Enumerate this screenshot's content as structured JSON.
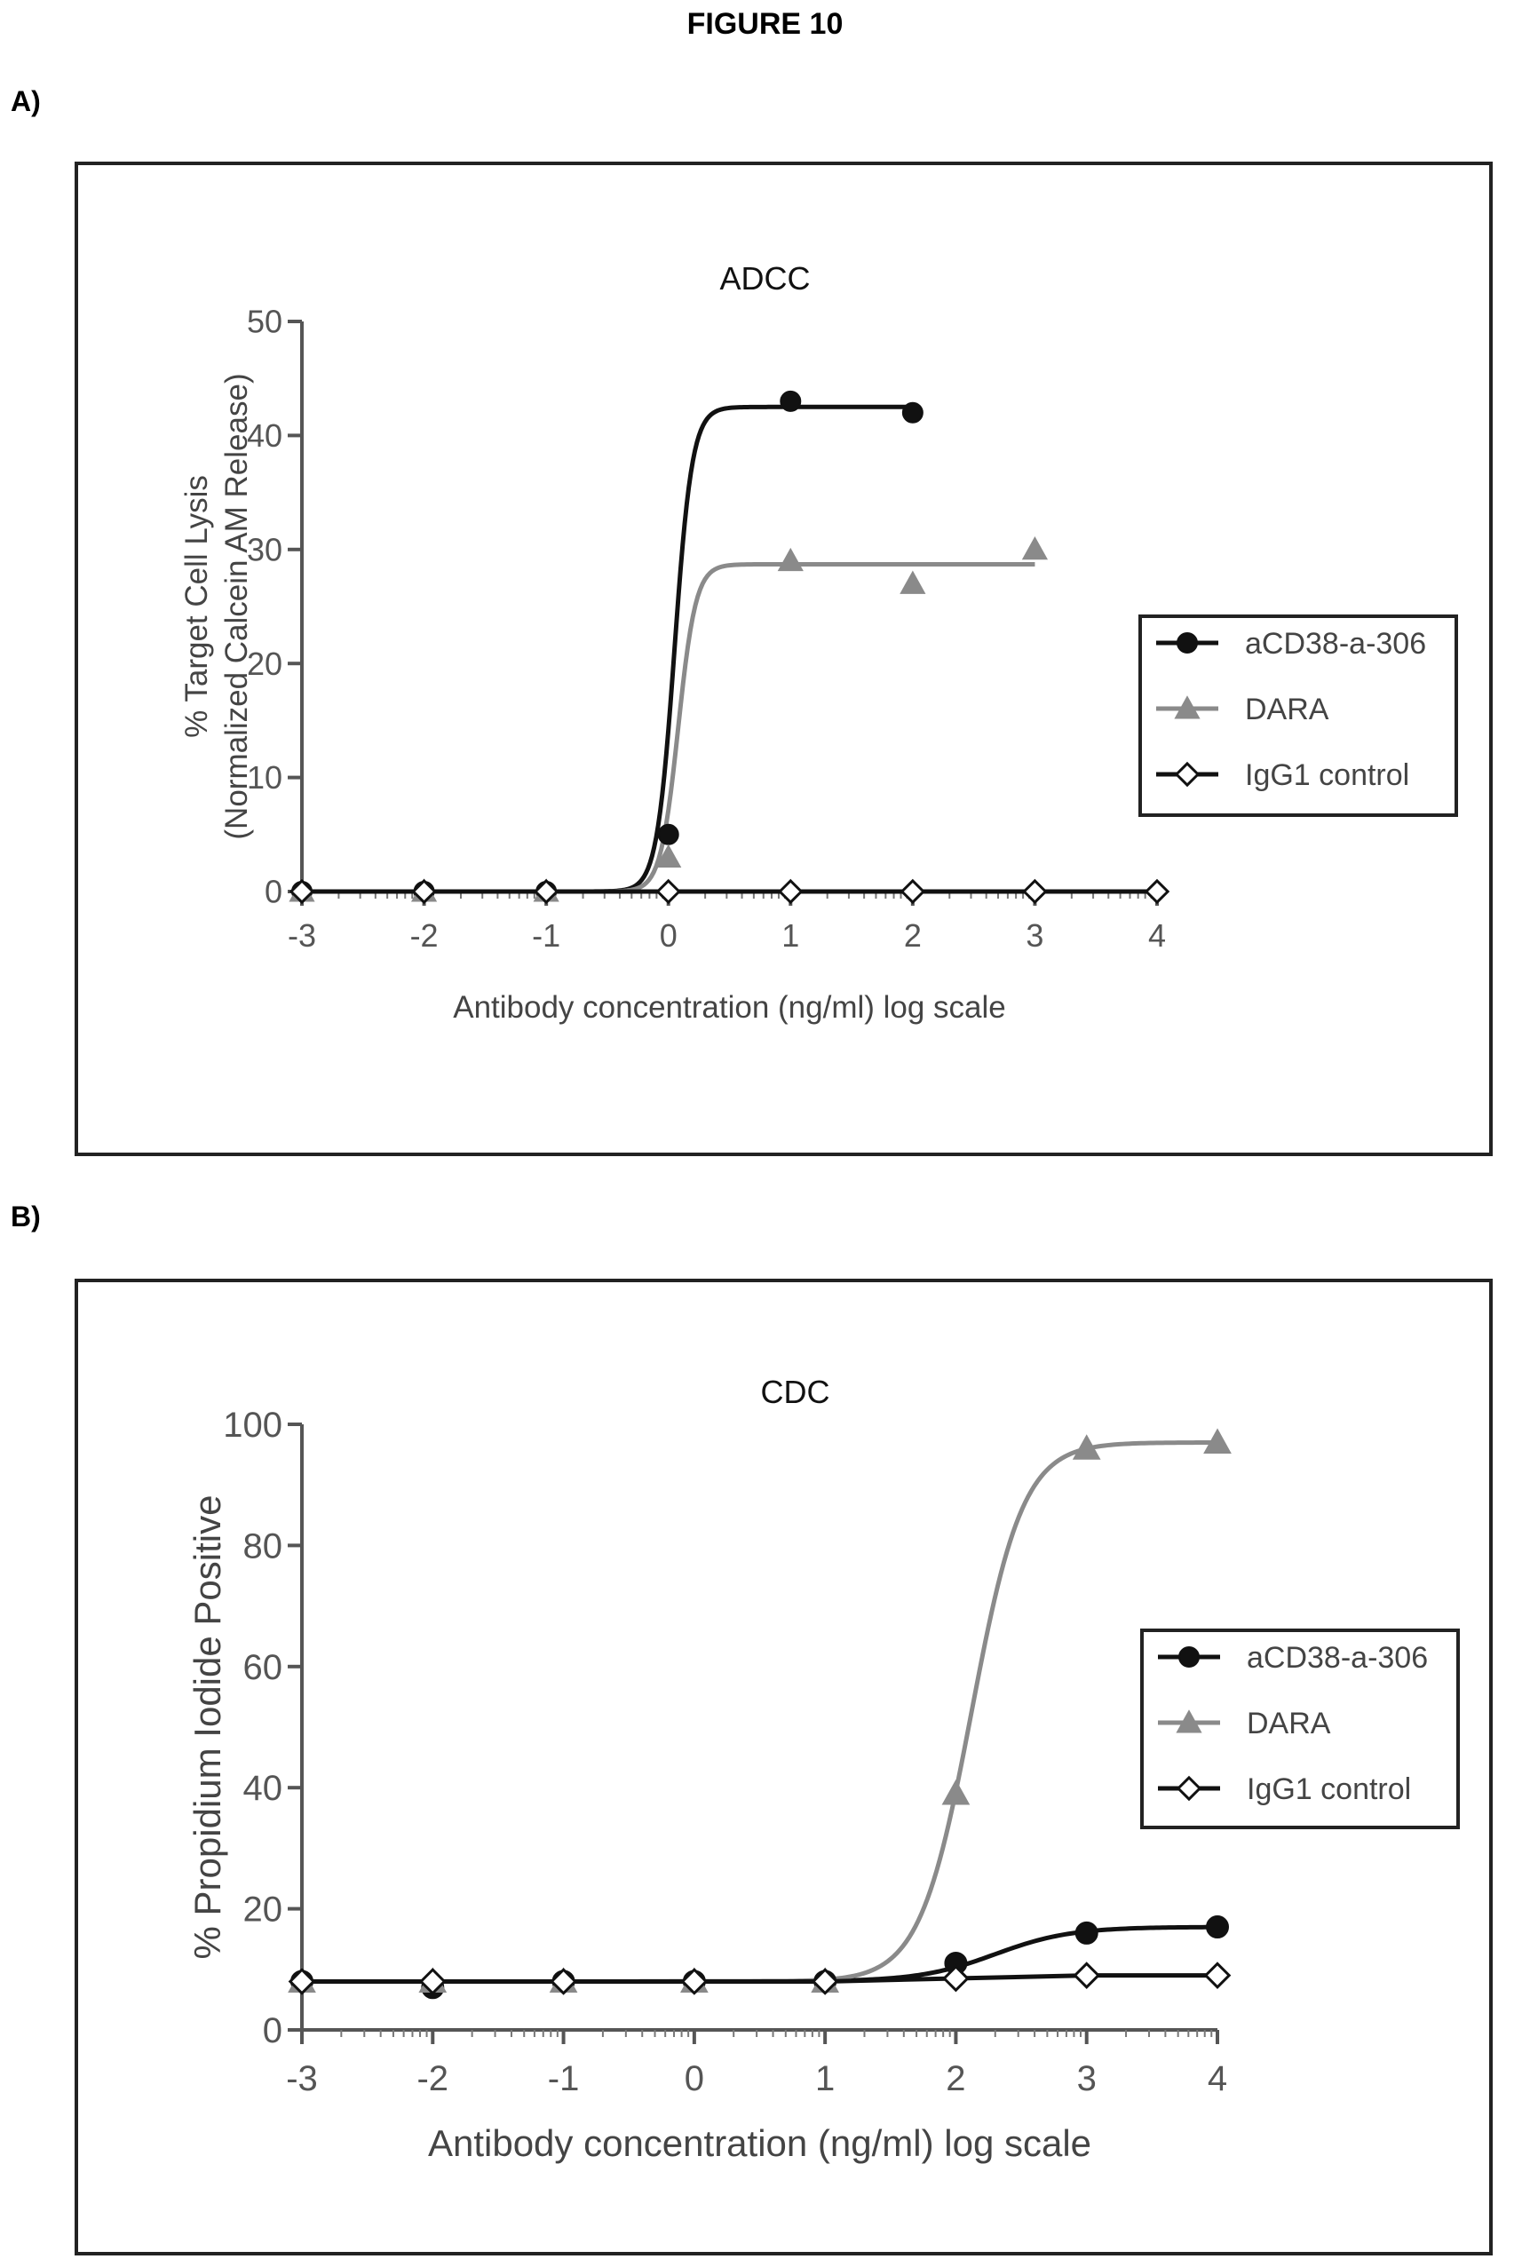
{
  "figure_title": "FIGURE 10",
  "panels": [
    {
      "label": "A)"
    },
    {
      "label": "B)"
    }
  ],
  "chart_data": [
    {
      "type": "line",
      "title": "ADCC",
      "xlabel": "Antibody concentration (ng/ml) log scale",
      "ylabel_lines": [
        "% Target Cell Lysis",
        "(Normalized Calcein AM Release)"
      ],
      "xlim": [
        -3,
        4
      ],
      "ylim": [
        0,
        50
      ],
      "x_ticks": [
        -3,
        -2,
        -1,
        0,
        1,
        2,
        3,
        4
      ],
      "y_ticks": [
        0,
        10,
        20,
        30,
        40,
        50
      ],
      "legend_position": "right",
      "series": [
        {
          "name": "aCD38-a-306",
          "color": "#111111",
          "marker": "circle",
          "fit": {
            "bottom": 0,
            "top": 42.5,
            "ec50": 0.05,
            "hill": 6
          },
          "x": [
            -3,
            -2,
            -1,
            0,
            1,
            2
          ],
          "y": [
            0,
            0,
            0,
            5,
            43,
            42
          ]
        },
        {
          "name": "DARA",
          "color": "#8a8a8a",
          "marker": "triangle",
          "fit": {
            "bottom": 0,
            "top": 28.7,
            "ec50": 0.08,
            "hill": 6
          },
          "x": [
            -3,
            -2,
            -1,
            0,
            1,
            2,
            3
          ],
          "y": [
            0,
            0,
            0,
            3,
            29,
            27,
            30
          ]
        },
        {
          "name": "IgG1 control",
          "color": "#111111",
          "marker": "diamond-open",
          "x": [
            -3,
            -2,
            -1,
            0,
            1,
            2,
            3,
            4
          ],
          "y": [
            0,
            0,
            0,
            0,
            0,
            0,
            0,
            0
          ]
        }
      ]
    },
    {
      "type": "line",
      "title": "CDC",
      "xlabel": "Antibody concentration (ng/ml) log scale",
      "ylabel_lines": [
        "% Propidium Iodide Positive"
      ],
      "xlim": [
        -3,
        4
      ],
      "ylim": [
        0,
        100
      ],
      "x_ticks": [
        -3,
        -2,
        -1,
        0,
        1,
        2,
        3,
        4
      ],
      "y_ticks": [
        0,
        20,
        40,
        60,
        80,
        100
      ],
      "legend_position": "right",
      "series": [
        {
          "name": "aCD38-a-306",
          "color": "#111111",
          "marker": "circle",
          "fit": {
            "bottom": 8,
            "top": 17,
            "ec50": 2.3,
            "hill": 1.5
          },
          "x": [
            -3,
            -2,
            -1,
            0,
            1,
            2,
            3,
            4
          ],
          "y": [
            8,
            7,
            8,
            8,
            8,
            11,
            16,
            17
          ]
        },
        {
          "name": "DARA",
          "color": "#8a8a8a",
          "marker": "triangle",
          "fit": {
            "bottom": 8,
            "top": 97,
            "ec50": 2.12,
            "hill": 2.2
          },
          "x": [
            -3,
            -2,
            -1,
            0,
            1,
            2,
            3,
            4
          ],
          "y": [
            8,
            8,
            8,
            8,
            8,
            39,
            96,
            97
          ]
        },
        {
          "name": "IgG1 control",
          "color": "#111111",
          "marker": "diamond-open",
          "x": [
            -3,
            -2,
            -1,
            0,
            1,
            2,
            3,
            4
          ],
          "y": [
            8,
            8,
            8,
            8,
            8,
            8.5,
            9,
            9
          ]
        }
      ]
    }
  ]
}
